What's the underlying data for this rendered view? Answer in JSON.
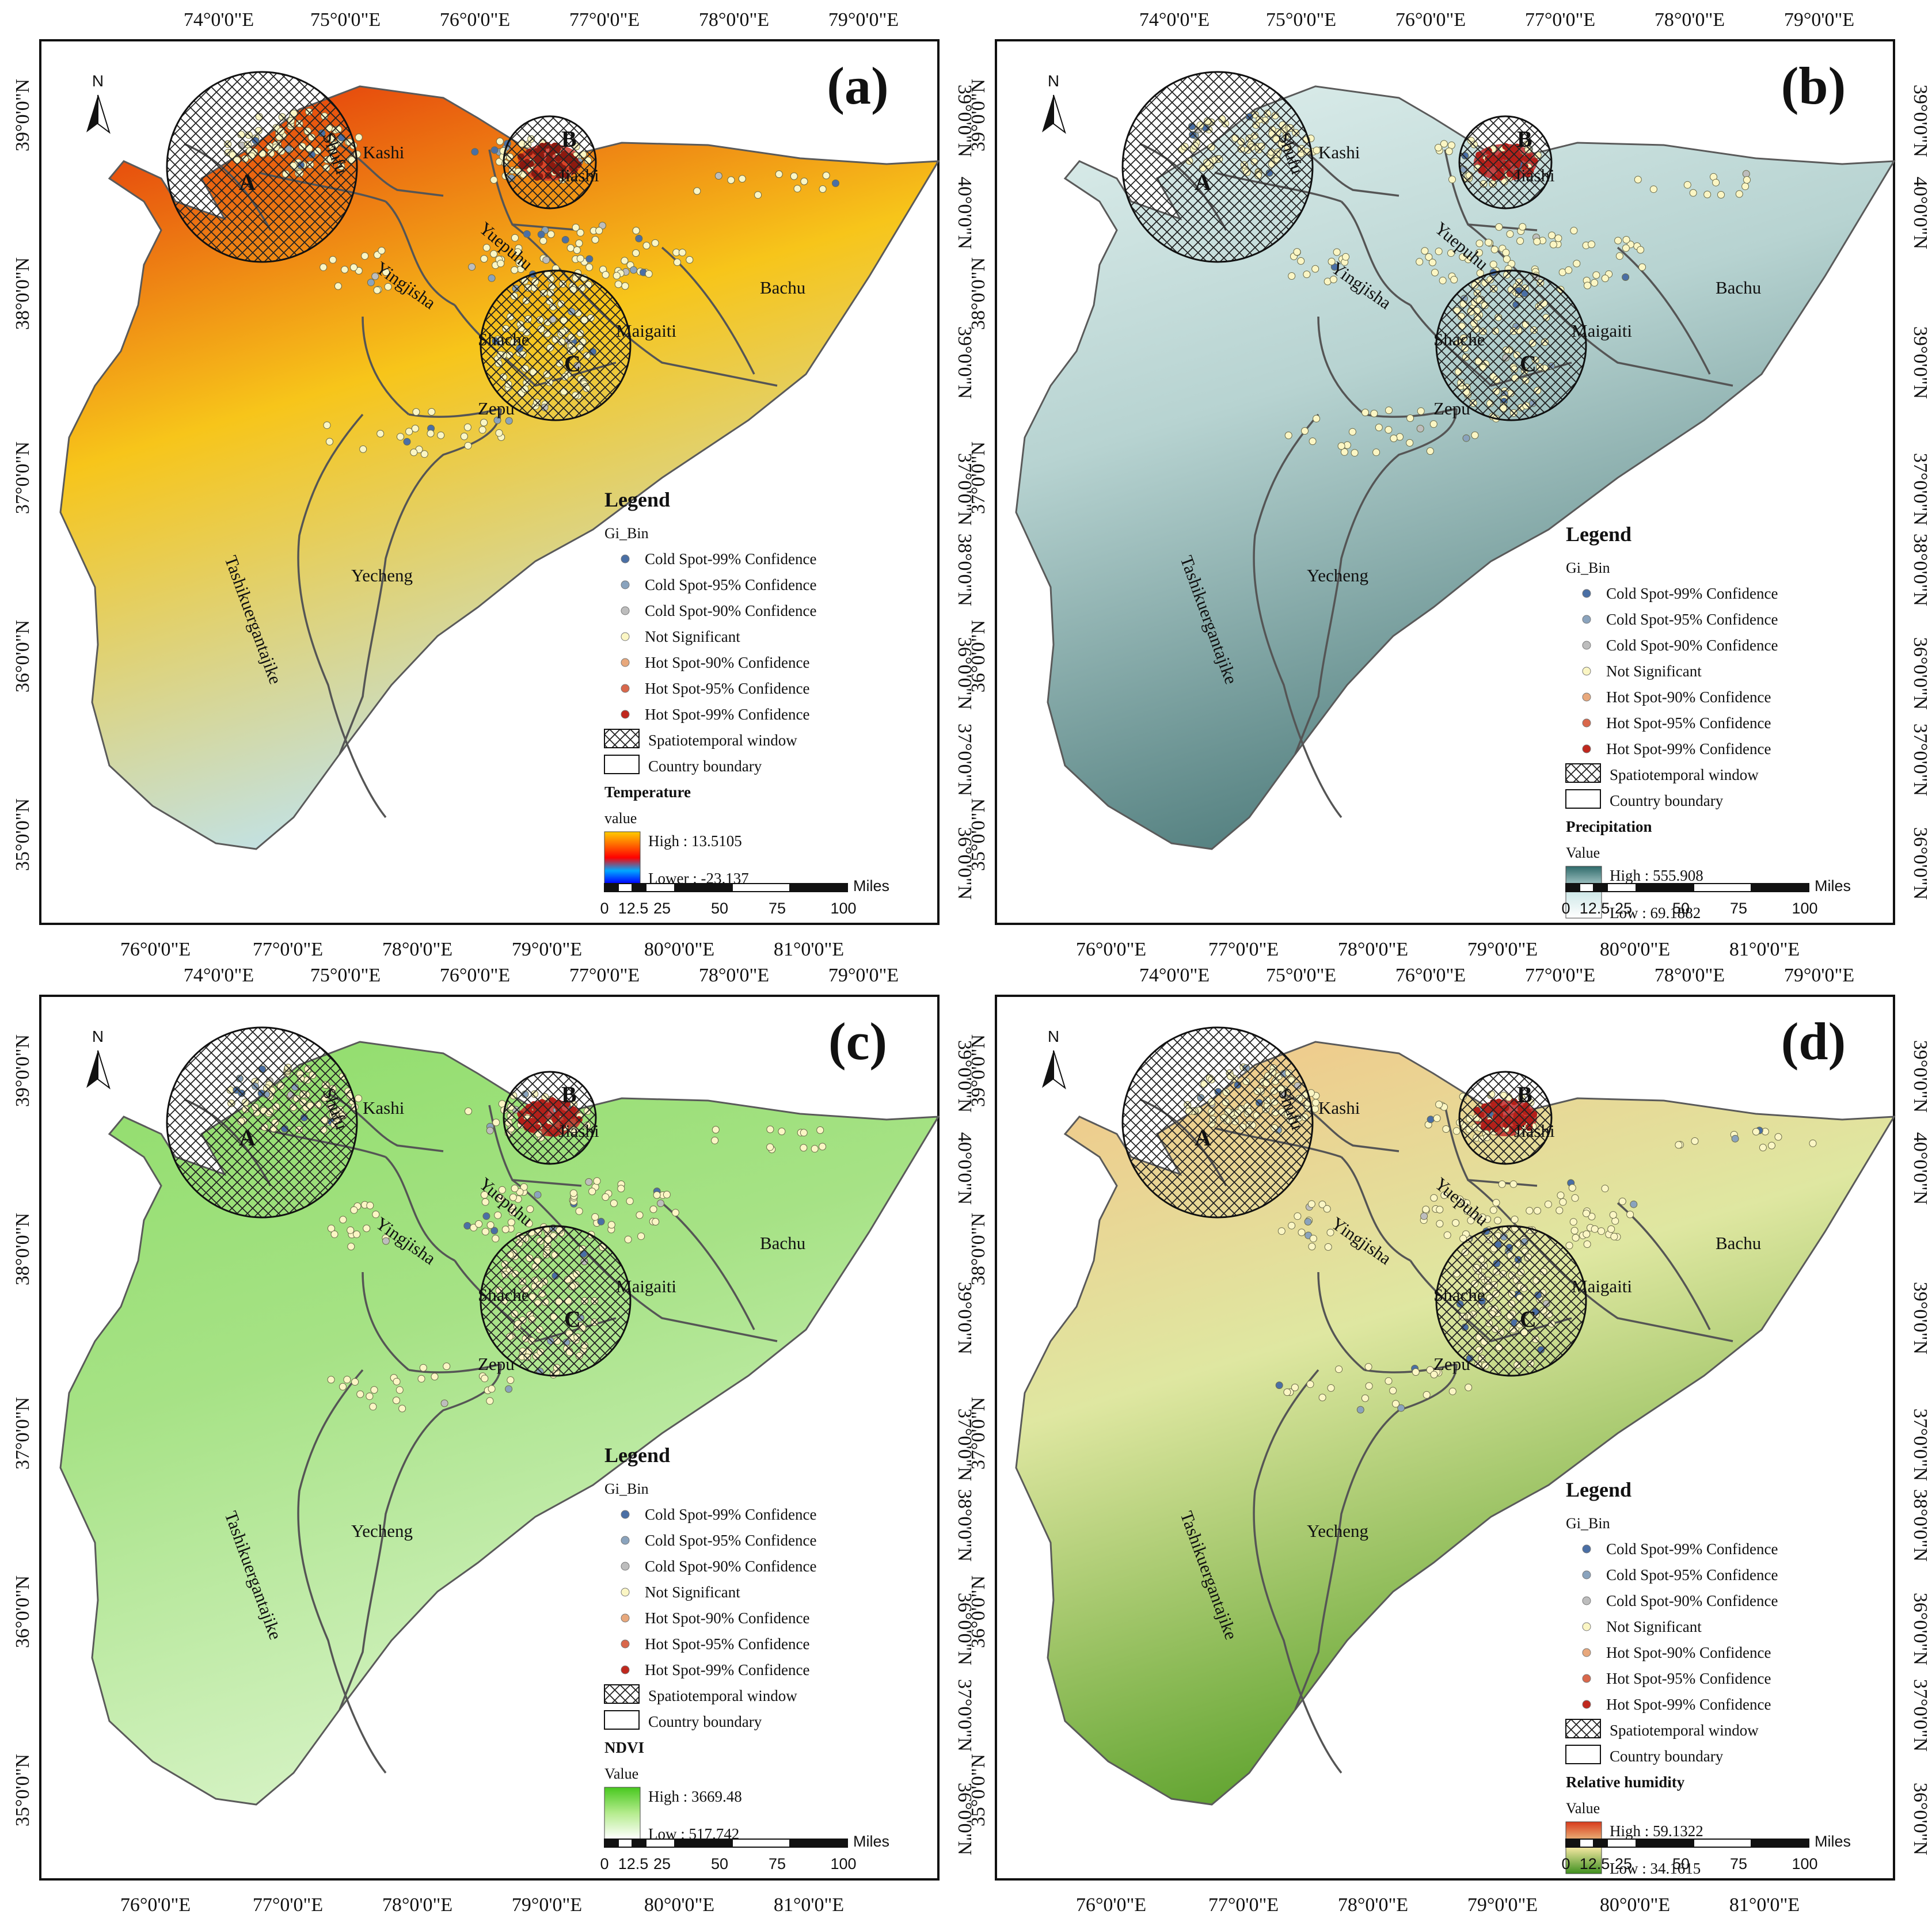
{
  "figure": {
    "panels": [
      {
        "id": "a",
        "label": "(a)",
        "ramp_colors": [
          "#ffcc00",
          "#ff6a00",
          "#ff0000",
          "#00a8ff",
          "#0000ff"
        ],
        "terrain_colors": {
          "north": "#e22a0a",
          "mid": "#f7c51a",
          "south": "#bfe3f0"
        },
        "window_b_fill": "#d23a2e",
        "hotspot_color": "#8b1a10",
        "variable_title": "Temperature",
        "value_caption": "value",
        "high_label": "High : 13.5105",
        "low_label": "Lower : -23.137"
      },
      {
        "id": "b",
        "label": "(b)",
        "ramp_colors": [
          "#2f6a6a",
          "#cfe8e8",
          "#ffffff"
        ],
        "terrain_colors": {
          "north": "#e0f0ee",
          "mid": "#b7d3d1",
          "south": "#4f7c7c"
        },
        "window_b_fill": "#c22a2a",
        "hotspot_color": "#b3201a",
        "variable_title": "Precipitation",
        "value_caption": "Value",
        "high_label": "High : 555.908",
        "low_label": "Low : 69.1882"
      },
      {
        "id": "c",
        "label": "(c)",
        "ramp_colors": [
          "#48c81e",
          "#b5ec8e",
          "#ffffff"
        ],
        "terrain_colors": {
          "north": "#8fdd6a",
          "mid": "#a6e285",
          "south": "#d7f3c6"
        },
        "window_b_fill": "#c22a2a",
        "hotspot_color": "#b3201a",
        "variable_title": "NDVI",
        "value_caption": "Value",
        "high_label": "High : 3669.48",
        "low_label": "Low : 517.742"
      },
      {
        "id": "d",
        "label": "(d)",
        "ramp_colors": [
          "#d83a1c",
          "#f2e7a0",
          "#3e8f1e"
        ],
        "terrain_colors": {
          "north": "#f3c487",
          "mid": "#dfe7a1",
          "south": "#5aa02a"
        },
        "window_b_fill": "#c22a2a",
        "hotspot_color": "#b3201a",
        "variable_title": "Relative humidity",
        "value_caption": "Value",
        "high_label": "High : 59.1322",
        "low_label": "Low : 34.1615"
      }
    ],
    "top_longitudes": [
      "74°0'0\"E",
      "75°0'0\"E",
      "76°0'0\"E",
      "77°0'0\"E",
      "78°0'0\"E",
      "79°0'0\"E"
    ],
    "bottom_longitudes": [
      "76°0'0\"E",
      "77°0'0\"E",
      "78°0'0\"E",
      "79°0'0\"E",
      "80°0'0\"E",
      "81°0'0\"E"
    ],
    "left_latitudes": [
      "39°0'0\"N",
      "38°0'0\"N",
      "37°0'0\"N",
      "36°0'0\"N",
      "35°0'0\"N"
    ],
    "right_latitudes": [
      "39°0'0\"N",
      "40°0'0\"N",
      "39°0'0\"N",
      "37°0'0\"N",
      "38°0'0\"N",
      "36°0'0\"N",
      "37°0'0\"N",
      "36°0'0\"N"
    ],
    "counties": [
      "Kashi",
      "Shufu",
      "Jiashi",
      "Yuepuhu",
      "Yingjisha",
      "Shache",
      "Maigaiti",
      "Bachu",
      "Zepu",
      "Yecheng",
      "Tashikuergantajike"
    ],
    "windows": [
      "A",
      "B",
      "C"
    ],
    "north_label": "N",
    "legend": {
      "title": "Legend",
      "field": "Gi_Bin",
      "items": [
        {
          "label": "Cold Spot-99% Confidence",
          "color": "#4a6fa5"
        },
        {
          "label": "Cold Spot-95% Confidence",
          "color": "#8aa3bd"
        },
        {
          "label": "Cold Spot-90% Confidence",
          "color": "#bdbdbd"
        },
        {
          "label": "Not Significant",
          "color": "#fbf6c4"
        },
        {
          "label": "Hot Spot-90% Confidence",
          "color": "#e8a87c"
        },
        {
          "label": "Hot Spot-95% Confidence",
          "color": "#d9674b"
        },
        {
          "label": "Hot Spot-99% Confidence",
          "color": "#c0281e"
        }
      ],
      "window_label": "Spatiotemporal window",
      "boundary_label": "Country boundary"
    },
    "scale": {
      "unit": "Miles",
      "ticks": [
        "0",
        "12.5",
        "25",
        "50",
        "75",
        "100"
      ]
    }
  }
}
